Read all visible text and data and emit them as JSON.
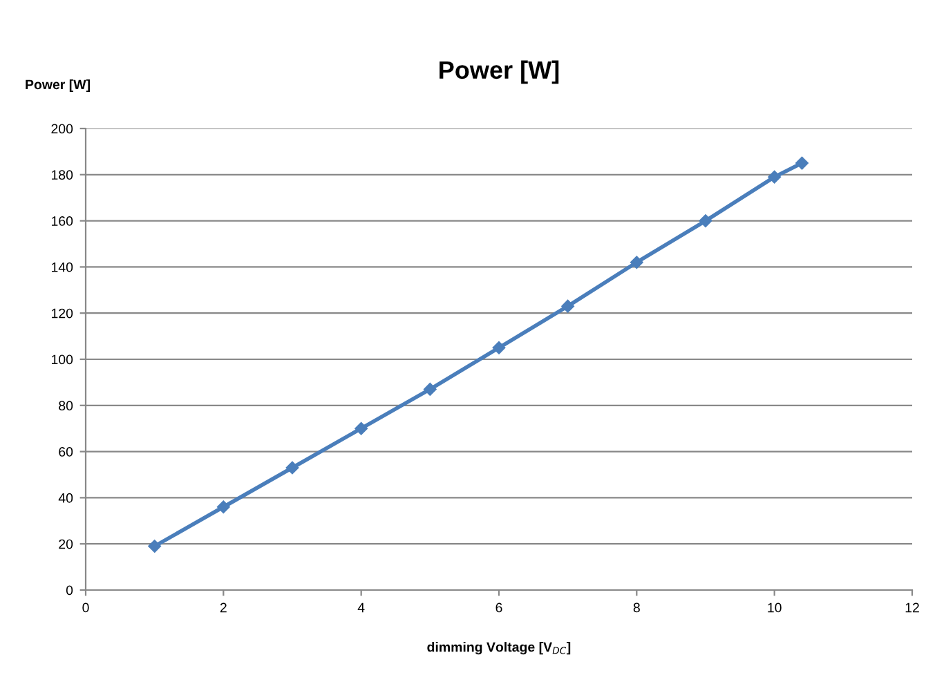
{
  "chart_data": {
    "type": "line",
    "title": "Power [W]",
    "ylabel": "Power [W]",
    "xlabel": "dimming Voltage [V$_{DC}$]",
    "x": [
      1,
      2,
      3,
      4,
      5,
      6,
      7,
      8,
      9,
      10,
      10.4
    ],
    "series": [
      {
        "color": "#4a7ebb",
        "values": [
          19,
          36,
          53,
          70,
          87,
          105,
          123,
          142,
          160,
          179,
          185
        ]
      }
    ],
    "xlim": [
      0,
      12
    ],
    "xticks": [
      0,
      2,
      4,
      6,
      8,
      10,
      12
    ],
    "ylim": [
      0,
      200
    ],
    "yticks": [
      0,
      20,
      40,
      60,
      80,
      100,
      120,
      140,
      160,
      180,
      200
    ],
    "grid": "y",
    "marker": "diamond",
    "line_style": "solid",
    "legend": false
  }
}
